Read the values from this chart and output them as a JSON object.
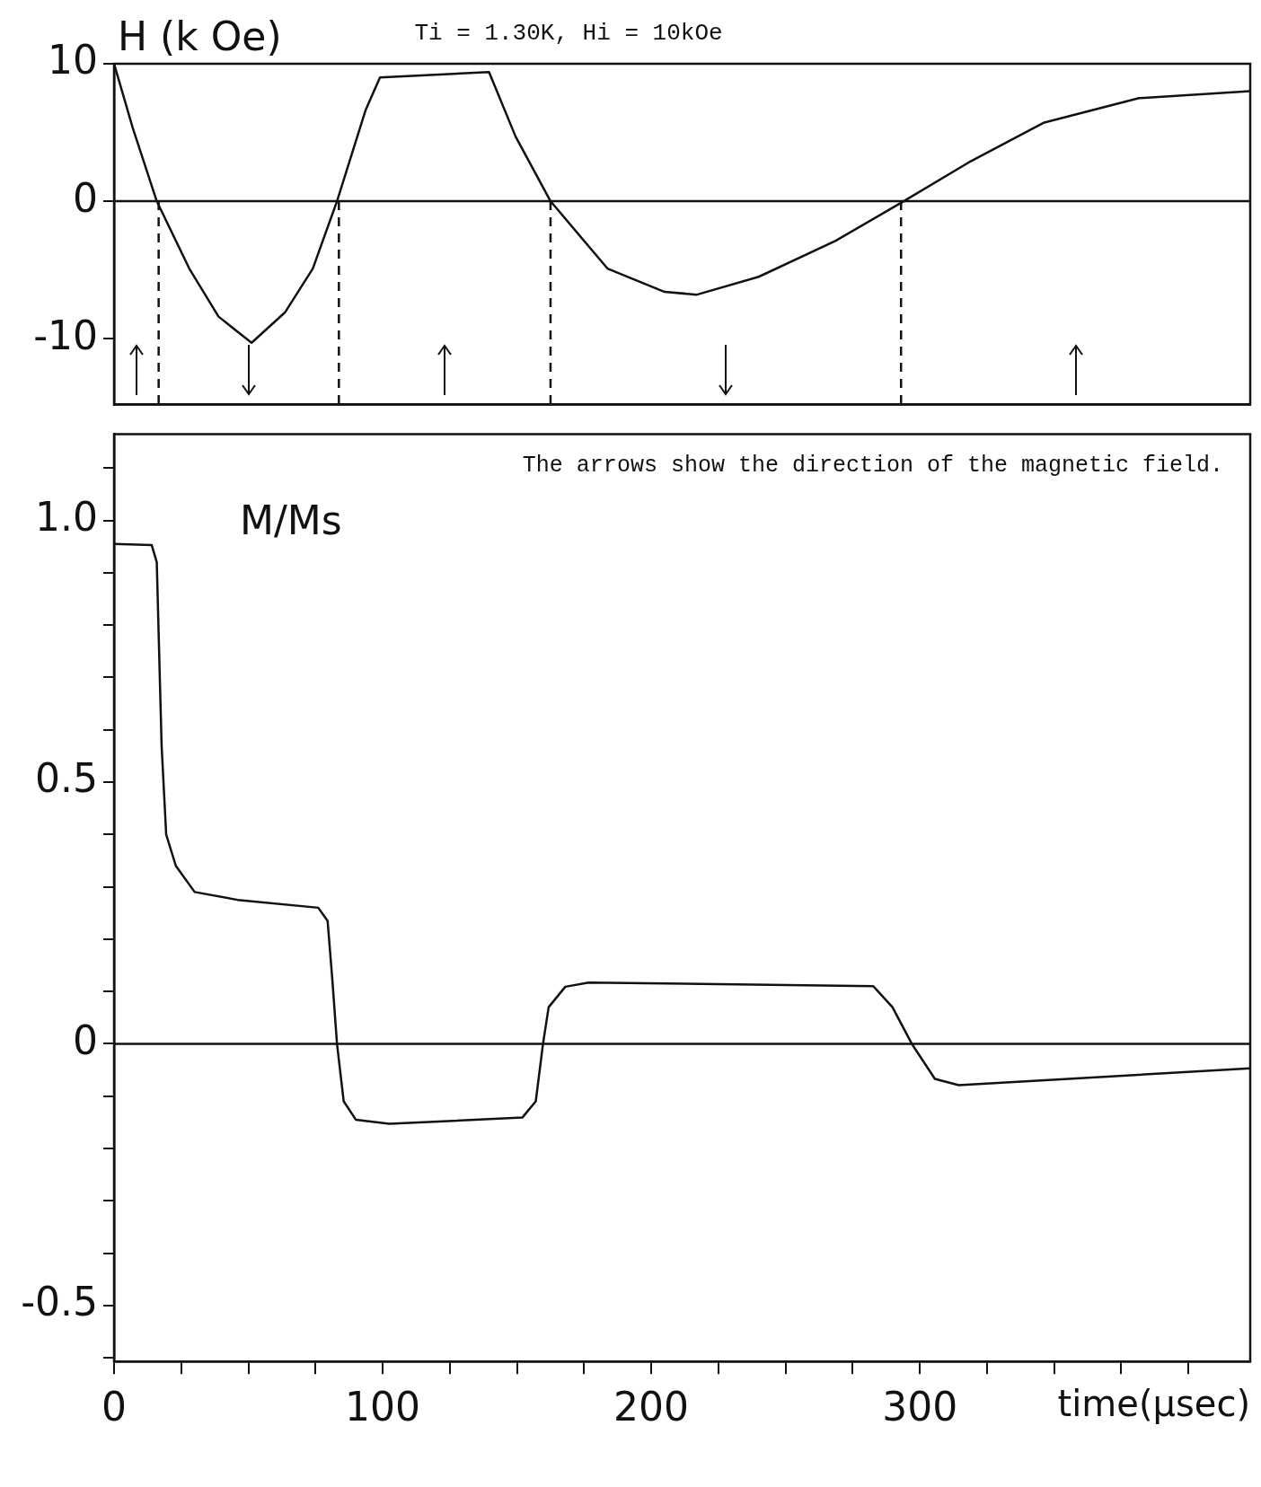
{
  "chart_data": [
    {
      "type": "line",
      "title": "Ti = 1.30K, Hi = 10kOe",
      "ylabel": "H (k Oe)",
      "x": [
        0,
        7,
        15.9,
        28,
        38.9,
        51.2,
        63.6,
        74,
        83,
        93.6,
        99,
        139.6,
        149.5,
        162.5,
        183.7,
        205,
        217,
        240,
        268.5,
        294,
        318,
        346,
        381.6,
        423
      ],
      "series": [
        {
          "color": "#111111",
          "values": [
            10,
            5.3,
            0,
            -4.9,
            -8.4,
            -10.3,
            -8.1,
            -4.9,
            0,
            6.6,
            9.0,
            9.4,
            4.7,
            0,
            -4.9,
            -6.6,
            -6.8,
            -5.5,
            -2.9,
            0,
            2.8,
            5.7,
            7.5,
            8.0
          ]
        }
      ],
      "xlim": [
        0,
        423
      ],
      "ylim": [
        -14.8,
        10
      ],
      "yticks": [
        10,
        0,
        -10
      ],
      "tick_labels": "y",
      "marker": "none",
      "line_style": "solid",
      "ref_lines": [
        {
          "axis": "y",
          "value": 0,
          "color": "#111111"
        },
        {
          "axis": "x",
          "value": 16.6,
          "color": "#111111",
          "line_style": "dashed"
        },
        {
          "axis": "x",
          "value": 83.7,
          "color": "#111111",
          "line_style": "dashed"
        },
        {
          "axis": "x",
          "value": 162.5,
          "color": "#111111",
          "line_style": "dashed"
        },
        {
          "axis": "x",
          "value": 293,
          "color": "#111111",
          "line_style": "dashed"
        }
      ]
    },
    {
      "type": "line",
      "ylabel": "M/Ms",
      "xlabel": "time(µsec)",
      "annotations": [
        "The arrows show the direction of the magnetic field."
      ],
      "x": [
        0,
        14,
        15.9,
        17.7,
        19.4,
        23,
        30,
        46,
        76,
        79.5,
        81.3,
        83,
        85.5,
        90,
        102.5,
        152,
        157,
        159.7,
        161.8,
        168,
        176.7,
        282.7,
        289.8,
        297,
        305.6,
        314.5,
        423
      ],
      "series": [
        {
          "color": "#111111",
          "values": [
            0.955,
            0.953,
            0.92,
            0.57,
            0.4,
            0.34,
            0.29,
            0.275,
            0.26,
            0.235,
            0.12,
            0,
            -0.11,
            -0.145,
            -0.153,
            -0.141,
            -0.11,
            0,
            0.07,
            0.109,
            0.117,
            0.11,
            0.07,
            0,
            -0.067,
            -0.079,
            -0.047
          ]
        }
      ],
      "xlim": [
        0,
        423
      ],
      "xticks": [
        0,
        {
          "value": 25,
          "label": null
        },
        {
          "value": 50,
          "label": null
        },
        {
          "value": 75,
          "label": null
        },
        100,
        {
          "value": 125,
          "label": null
        },
        {
          "value": 150,
          "label": null
        },
        {
          "value": 175,
          "label": null
        },
        200,
        {
          "value": 225,
          "label": null
        },
        {
          "value": 250,
          "label": null
        },
        {
          "value": 275,
          "label": null
        },
        300,
        {
          "value": 325,
          "label": null
        },
        {
          "value": 350,
          "label": null
        },
        {
          "value": 375,
          "label": null
        },
        {
          "value": 400,
          "label": null
        }
      ],
      "ylim": [
        -0.607,
        1.165
      ],
      "yticks": [
        {
          "value": -0.6,
          "label": null
        },
        {
          "value": -0.5,
          "label": "-0.5"
        },
        {
          "value": -0.4,
          "label": null
        },
        {
          "value": -0.3,
          "label": null
        },
        {
          "value": -0.2,
          "label": null
        },
        {
          "value": -0.1,
          "label": null
        },
        0,
        {
          "value": 0.1,
          "label": null
        },
        {
          "value": 0.2,
          "label": null
        },
        {
          "value": 0.3,
          "label": null
        },
        {
          "value": 0.4,
          "label": null
        },
        {
          "value": 0.5,
          "label": "0.5"
        },
        {
          "value": 0.6,
          "label": null
        },
        {
          "value": 0.7,
          "label": null
        },
        {
          "value": 0.8,
          "label": null
        },
        {
          "value": 0.9,
          "label": null
        },
        {
          "value": 1,
          "label": "1.0"
        },
        {
          "value": 1.1,
          "label": null
        }
      ],
      "marker": "none",
      "line_style": "solid",
      "ref_lines": [
        {
          "axis": "y",
          "value": 0,
          "color": "#111111"
        }
      ]
    }
  ]
}
